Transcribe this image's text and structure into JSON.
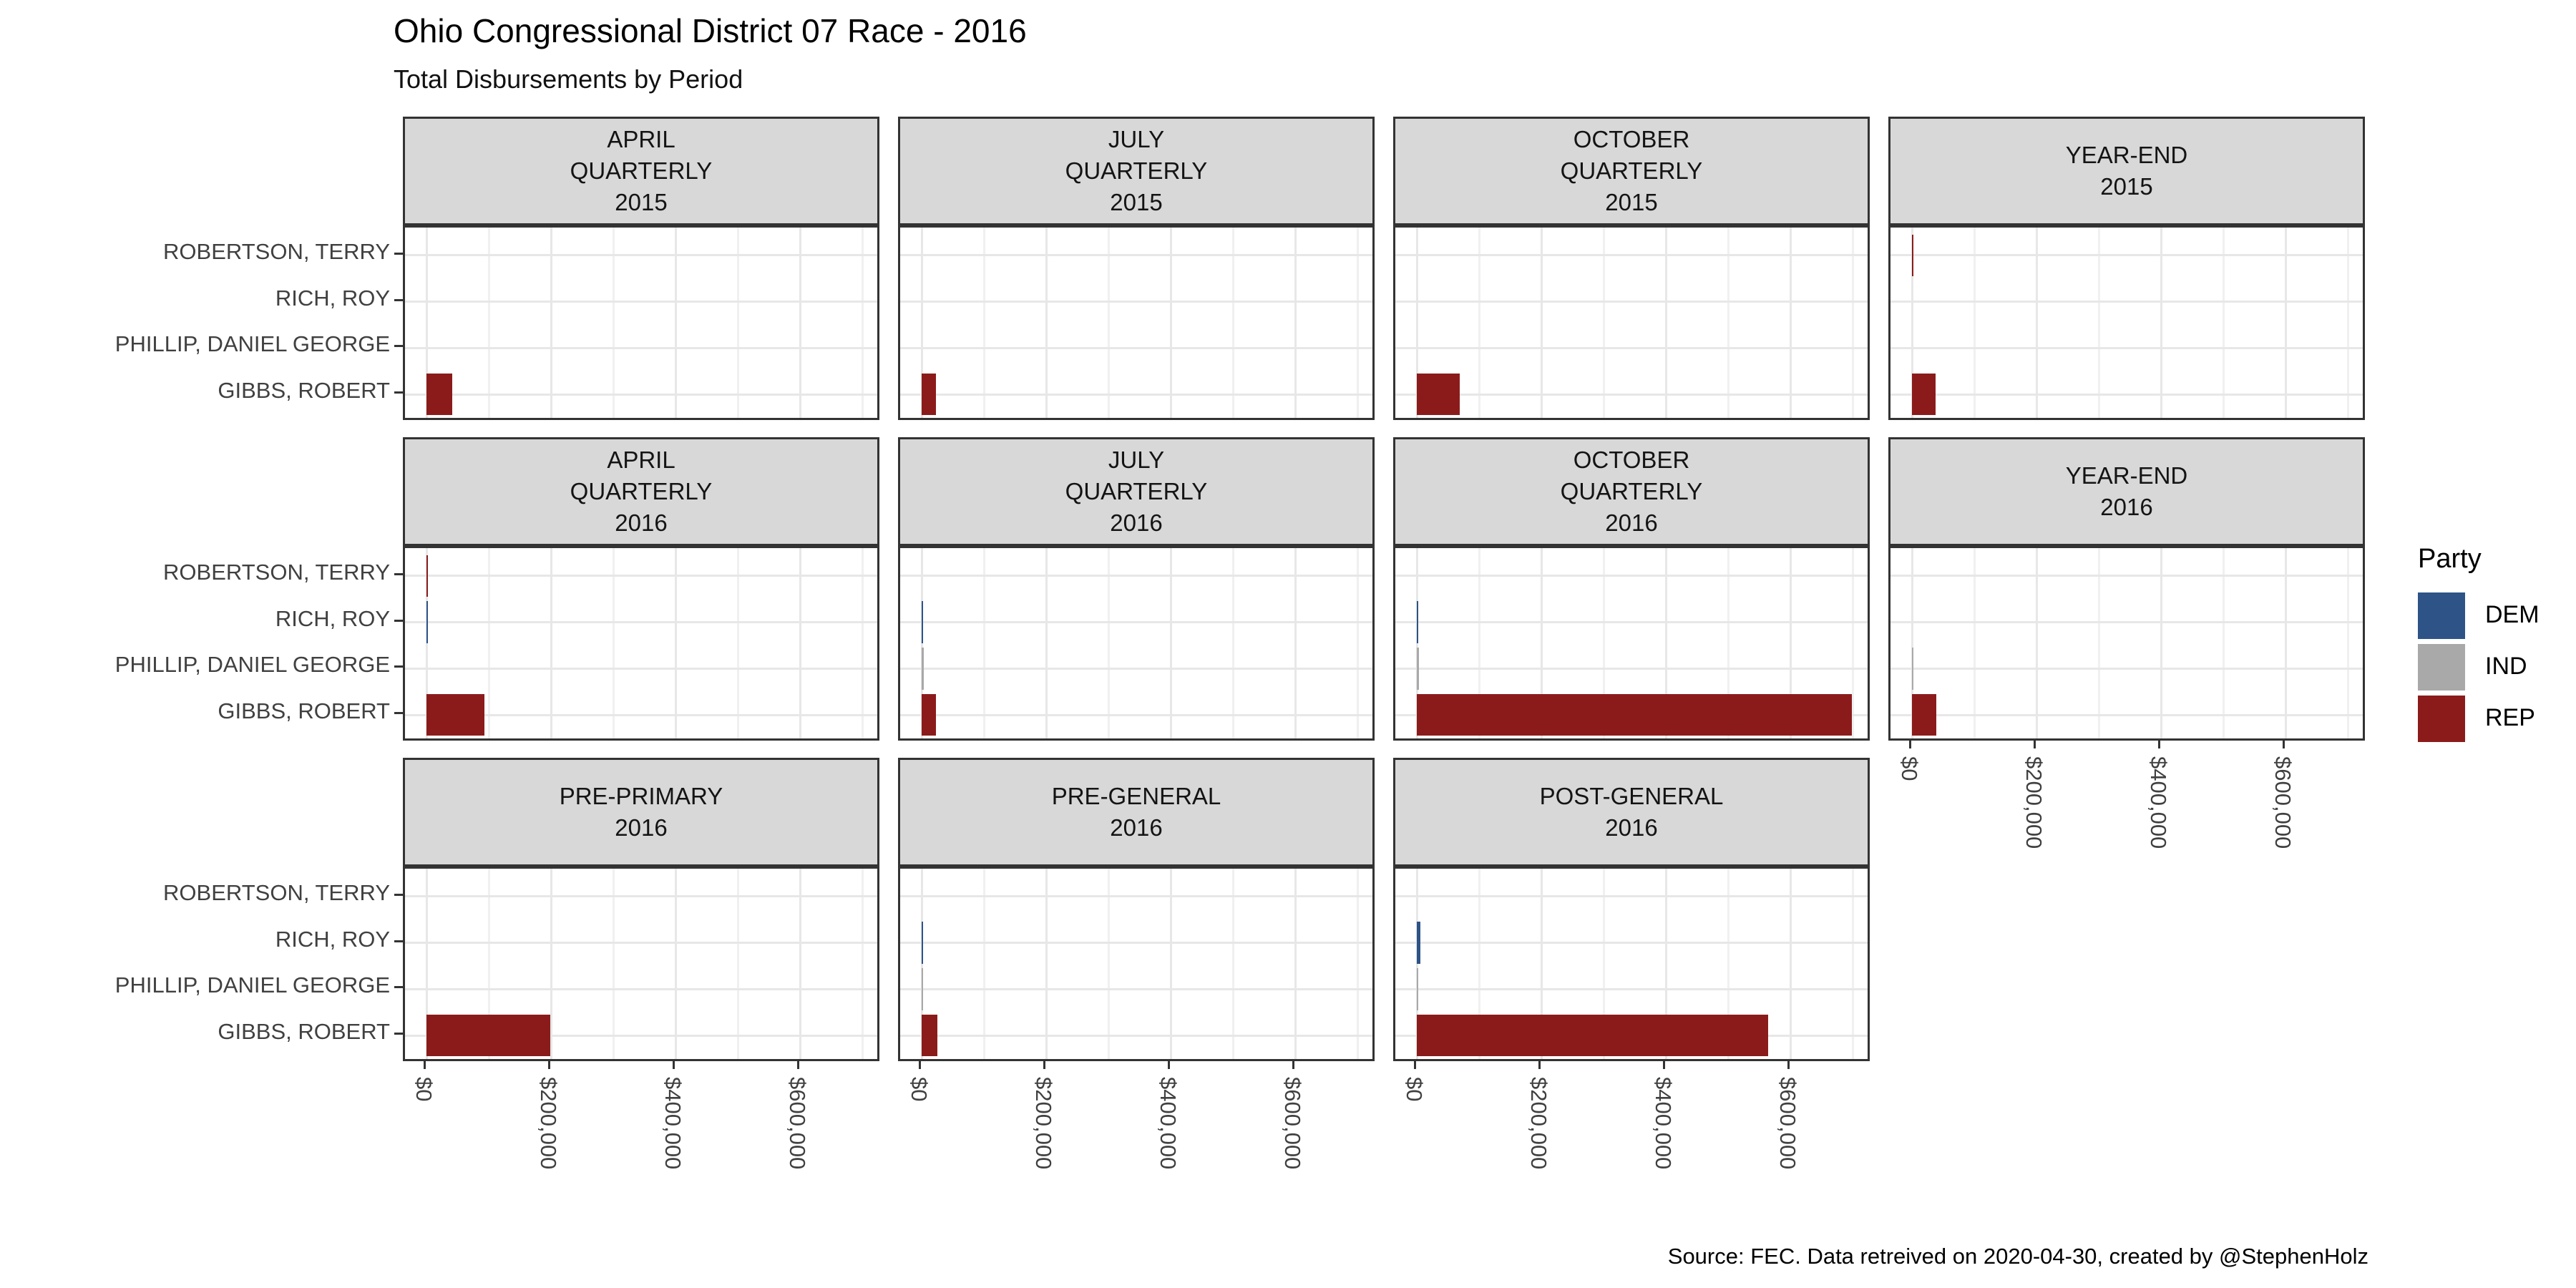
{
  "title": "Ohio Congressional District 07 Race - 2016",
  "subtitle": "Total Disbursements by Period",
  "caption": "Source: FEC. Data retreived on 2020-04-30, created by @StephenHolz",
  "legend": {
    "title": "Party",
    "items": [
      {
        "label": "DEM",
        "color": "#2D5387"
      },
      {
        "label": "IND",
        "color": "#A9A9A9"
      },
      {
        "label": "REP",
        "color": "#8B1B1B"
      }
    ]
  },
  "chart_data": {
    "type": "bar",
    "orientation": "horizontal",
    "title": "Ohio Congressional District 07 Race - 2016",
    "subtitle": "Total Disbursements by Period",
    "ylabel": "",
    "xlabel": "",
    "grid": "on",
    "legend_position": "right",
    "candidates_top_to_bottom": [
      "ROBERTSON, TERRY",
      "RICH, ROY",
      "PHILLIP, DANIEL GEORGE",
      "GIBBS, ROBERT"
    ],
    "parties": {
      "ROBERTSON, TERRY": "REP",
      "RICH, ROY": "DEM",
      "PHILLIP, DANIEL GEORGE": "IND",
      "GIBBS, ROBERT": "REP"
    },
    "party_colors": {
      "DEM": "#2D5387",
      "IND": "#A9A9A9",
      "REP": "#8B1B1B"
    },
    "x_axis": {
      "ticks": [
        0,
        200000,
        400000,
        600000
      ],
      "labels": [
        "$0",
        "$200,000",
        "$400,000",
        "$600,000"
      ],
      "xlim": [
        -35000,
        731000
      ],
      "label_rotation_deg": 90
    },
    "facets": [
      {
        "period": "APRIL QUARTERLY 2015",
        "label_lines": [
          "APRIL",
          "QUARTERLY",
          "2015"
        ],
        "row": 0,
        "col": 0,
        "show_x_axis": false,
        "disbursements": {
          "GIBBS, ROBERT": 41000
        }
      },
      {
        "period": "JULY QUARTERLY 2015",
        "label_lines": [
          "JULY",
          "QUARTERLY",
          "2015"
        ],
        "row": 0,
        "col": 1,
        "show_x_axis": false,
        "disbursements": {
          "GIBBS, ROBERT": 23000
        }
      },
      {
        "period": "OCTOBER QUARTERLY 2015",
        "label_lines": [
          "OCTOBER",
          "QUARTERLY",
          "2015"
        ],
        "row": 0,
        "col": 2,
        "show_x_axis": false,
        "disbursements": {
          "GIBBS, ROBERT": 69000
        }
      },
      {
        "period": "YEAR-END 2015",
        "label_lines": [
          "YEAR-END",
          "2015"
        ],
        "row": 0,
        "col": 3,
        "show_x_axis": false,
        "disbursements": {
          "ROBERTSON, TERRY": 1500,
          "GIBBS, ROBERT": 37000
        }
      },
      {
        "period": "APRIL QUARTERLY 2016",
        "label_lines": [
          "APRIL",
          "QUARTERLY",
          "2016"
        ],
        "row": 1,
        "col": 0,
        "show_x_axis": false,
        "disbursements": {
          "ROBERTSON, TERRY": 1200,
          "RICH, ROY": 1200,
          "GIBBS, ROBERT": 93000
        }
      },
      {
        "period": "JULY QUARTERLY 2016",
        "label_lines": [
          "JULY",
          "QUARTERLY",
          "2016"
        ],
        "row": 1,
        "col": 1,
        "show_x_axis": false,
        "disbursements": {
          "RICH, ROY": 1200,
          "PHILLIP, DANIEL GEORGE": 2500,
          "GIBBS, ROBERT": 23000
        }
      },
      {
        "period": "OCTOBER QUARTERLY 2016",
        "label_lines": [
          "OCTOBER",
          "QUARTERLY",
          "2016"
        ],
        "row": 1,
        "col": 2,
        "show_x_axis": false,
        "disbursements": {
          "RICH, ROY": 1500,
          "PHILLIP, DANIEL GEORGE": 3000,
          "GIBBS, ROBERT": 699000
        }
      },
      {
        "period": "YEAR-END 2016",
        "label_lines": [
          "YEAR-END",
          "2016"
        ],
        "row": 1,
        "col": 3,
        "show_x_axis": true,
        "disbursements": {
          "PHILLIP, DANIEL GEORGE": 2300,
          "GIBBS, ROBERT": 39000
        }
      },
      {
        "period": "PRE-PRIMARY 2016",
        "label_lines": [
          "PRE-PRIMARY",
          "2016"
        ],
        "row": 2,
        "col": 0,
        "show_x_axis": true,
        "disbursements": {
          "GIBBS, ROBERT": 198000
        }
      },
      {
        "period": "PRE-GENERAL 2016",
        "label_lines": [
          "PRE-GENERAL",
          "2016"
        ],
        "row": 2,
        "col": 1,
        "show_x_axis": true,
        "disbursements": {
          "RICH, ROY": 1200,
          "PHILLIP, DANIEL GEORGE": 2300,
          "GIBBS, ROBERT": 25000
        }
      },
      {
        "period": "POST-GENERAL 2016",
        "label_lines": [
          "POST-GENERAL",
          "2016"
        ],
        "row": 2,
        "col": 2,
        "show_x_axis": true,
        "disbursements": {
          "RICH, ROY": 5200,
          "PHILLIP, DANIEL GEORGE": 2300,
          "GIBBS, ROBERT": 564000
        }
      }
    ]
  }
}
